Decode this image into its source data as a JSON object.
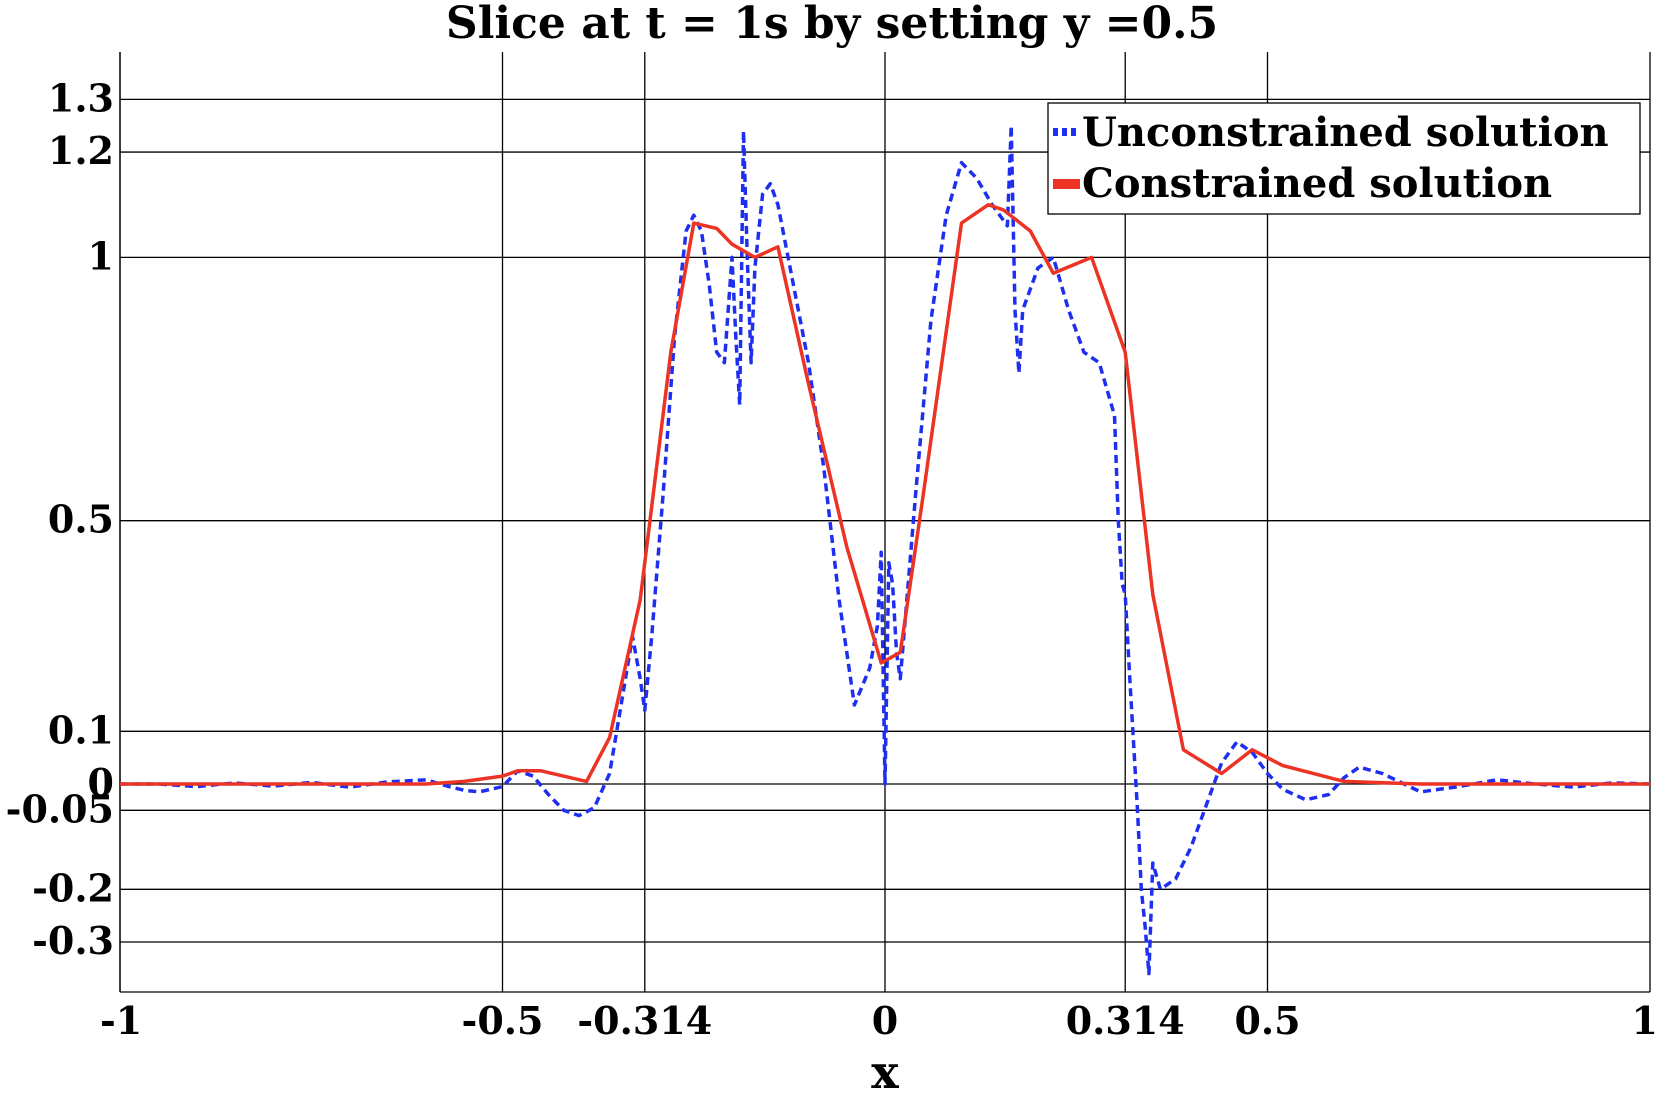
{
  "chart_data": {
    "type": "line",
    "title": "Slice at t = 1s by setting y =0.5",
    "xlabel": "x",
    "ylabel": "",
    "xlim": [
      -1,
      1
    ],
    "ylim": [
      -0.395,
      1.39
    ],
    "grid": true,
    "legend_position": "top-right",
    "x_ticks": [
      {
        "value": -1,
        "label": "-1"
      },
      {
        "value": -0.5,
        "label": "-0.5"
      },
      {
        "value": -0.314,
        "label": "-0.314"
      },
      {
        "value": 0,
        "label": "0"
      },
      {
        "value": 0.314,
        "label": "0.314"
      },
      {
        "value": 0.5,
        "label": "0.5"
      },
      {
        "value": 1,
        "label": "1"
      }
    ],
    "y_ticks": [
      {
        "value": 1.3,
        "label": "1.3"
      },
      {
        "value": 1.2,
        "label": "1.2"
      },
      {
        "value": 1,
        "label": "1"
      },
      {
        "value": 0.5,
        "label": "0.5"
      },
      {
        "value": 0.1,
        "label": "0.1"
      },
      {
        "value": 0,
        "label": "0"
      },
      {
        "value": -0.05,
        "label": "-0.05"
      },
      {
        "value": -0.2,
        "label": "-0.2"
      },
      {
        "value": -0.3,
        "label": "-0.3"
      }
    ],
    "series": [
      {
        "name": "Unconstrained solution",
        "color": "#1f2ff0",
        "style": "dashed",
        "x": [
          -1,
          -0.95,
          -0.9,
          -0.85,
          -0.8,
          -0.75,
          -0.7,
          -0.65,
          -0.6,
          -0.57,
          -0.55,
          -0.53,
          -0.5,
          -0.48,
          -0.46,
          -0.44,
          -0.42,
          -0.4,
          -0.38,
          -0.36,
          -0.345,
          -0.33,
          -0.32,
          -0.314,
          -0.305,
          -0.29,
          -0.275,
          -0.26,
          -0.25,
          -0.24,
          -0.23,
          -0.22,
          -0.21,
          -0.2,
          -0.195,
          -0.19,
          -0.185,
          -0.18,
          -0.175,
          -0.17,
          -0.16,
          -0.15,
          -0.14,
          -0.12,
          -0.1,
          -0.08,
          -0.06,
          -0.04,
          -0.02,
          -0.01,
          -0.005,
          0,
          0.005,
          0.01,
          0.015,
          0.02,
          0.04,
          0.06,
          0.08,
          0.1,
          0.12,
          0.14,
          0.16,
          0.165,
          0.17,
          0.175,
          0.18,
          0.2,
          0.22,
          0.24,
          0.26,
          0.28,
          0.3,
          0.305,
          0.31,
          0.314,
          0.32,
          0.33,
          0.335,
          0.34,
          0.345,
          0.35,
          0.36,
          0.38,
          0.4,
          0.42,
          0.44,
          0.46,
          0.48,
          0.5,
          0.52,
          0.55,
          0.58,
          0.6,
          0.62,
          0.65,
          0.7,
          0.75,
          0.8,
          0.85,
          0.9,
          0.95,
          1
        ],
        "y": [
          0,
          0,
          -0.005,
          0.002,
          -0.004,
          0.003,
          -0.006,
          0.004,
          0.008,
          -0.005,
          -0.012,
          -0.015,
          -0.005,
          0.025,
          0.015,
          -0.02,
          -0.05,
          -0.06,
          -0.045,
          0.02,
          0.15,
          0.28,
          0.2,
          0.14,
          0.28,
          0.55,
          0.85,
          1.05,
          1.08,
          1.05,
          0.95,
          0.82,
          0.8,
          1.0,
          0.85,
          0.72,
          1.24,
          1.0,
          0.8,
          0.98,
          1.12,
          1.14,
          1.1,
          0.95,
          0.8,
          0.6,
          0.35,
          0.15,
          0.22,
          0.3,
          0.44,
          0.0,
          0.42,
          0.38,
          0.25,
          0.2,
          0.55,
          0.88,
          1.08,
          1.18,
          1.15,
          1.1,
          1.06,
          1.25,
          0.9,
          0.78,
          0.9,
          0.98,
          1.0,
          0.9,
          0.82,
          0.8,
          0.7,
          0.5,
          0.38,
          0.36,
          0.2,
          -0.05,
          -0.2,
          -0.27,
          -0.36,
          -0.15,
          -0.2,
          -0.18,
          -0.12,
          -0.04,
          0.04,
          0.08,
          0.06,
          0.02,
          -0.01,
          -0.03,
          -0.02,
          0.012,
          0.032,
          0.02,
          -0.015,
          -0.005,
          0.008,
          0,
          -0.006,
          0.002,
          0
        ]
      },
      {
        "name": "Constrained solution",
        "color": "#ec3324",
        "style": "solid",
        "x": [
          -1,
          -0.9,
          -0.8,
          -0.7,
          -0.6,
          -0.55,
          -0.5,
          -0.48,
          -0.45,
          -0.39,
          -0.36,
          -0.32,
          -0.28,
          -0.25,
          -0.22,
          -0.2,
          -0.17,
          -0.14,
          -0.1,
          -0.05,
          -0.005,
          0.02,
          0.05,
          0.1,
          0.135,
          0.155,
          0.19,
          0.22,
          0.27,
          0.314,
          0.35,
          0.39,
          0.44,
          0.48,
          0.52,
          0.6,
          0.7,
          0.8,
          0.9,
          1
        ],
        "y": [
          0,
          0,
          0,
          0,
          0,
          0.005,
          0.015,
          0.025,
          0.025,
          0.005,
          0.088,
          0.35,
          0.82,
          1.065,
          1.055,
          1.025,
          1.0,
          1.02,
          0.76,
          0.45,
          0.23,
          0.25,
          0.55,
          1.065,
          1.1,
          1.09,
          1.05,
          0.97,
          1.0,
          0.82,
          0.36,
          0.065,
          0.02,
          0.065,
          0.035,
          0.005,
          0,
          0,
          0,
          0
        ]
      }
    ]
  }
}
